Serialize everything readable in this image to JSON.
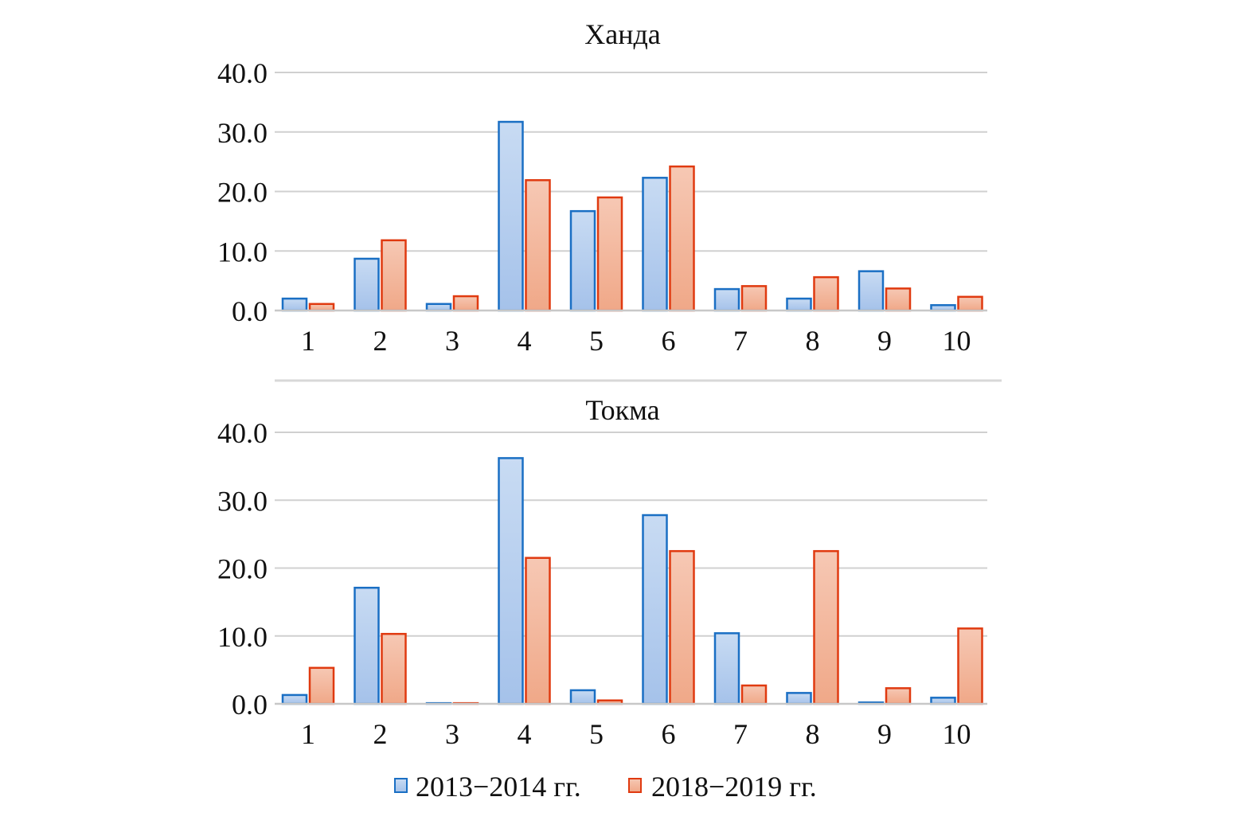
{
  "chart_data": [
    {
      "type": "bar",
      "title": "Ханда",
      "categories": [
        "1",
        "2",
        "3",
        "4",
        "5",
        "6",
        "7",
        "8",
        "9",
        "10"
      ],
      "ylim": [
        0,
        40
      ],
      "yticks": [
        "0.0",
        "10.0",
        "20.0",
        "30.0",
        "40.0"
      ],
      "grid": true,
      "series": [
        {
          "name": "2013−2014 гг.",
          "values": [
            2.0,
            8.7,
            1.1,
            31.7,
            16.7,
            22.3,
            3.6,
            2.0,
            6.6,
            0.9
          ]
        },
        {
          "name": "2018−2019 гг.",
          "values": [
            1.1,
            11.8,
            2.4,
            21.9,
            19.0,
            24.2,
            4.1,
            5.6,
            3.7,
            2.3
          ]
        }
      ]
    },
    {
      "type": "bar",
      "title": "Токма",
      "categories": [
        "1",
        "2",
        "3",
        "4",
        "5",
        "6",
        "7",
        "8",
        "9",
        "10"
      ],
      "ylim": [
        0,
        40
      ],
      "yticks": [
        "0.0",
        "10.0",
        "20.0",
        "30.0",
        "40.0"
      ],
      "grid": true,
      "series": [
        {
          "name": "2013−2014 гг.",
          "values": [
            1.3,
            17.1,
            0.1,
            36.2,
            2.0,
            27.8,
            10.4,
            1.6,
            0.2,
            0.9
          ]
        },
        {
          "name": "2018−2019 гг.",
          "values": [
            5.3,
            10.3,
            0.1,
            21.5,
            0.5,
            22.5,
            2.7,
            22.5,
            2.3,
            11.1
          ]
        }
      ]
    }
  ],
  "legend": {
    "position": "bottom",
    "items": [
      {
        "label": "2013−2014 гг.",
        "stroke": "#1a6fc4",
        "fill": "#b3cdee"
      },
      {
        "label": "2018−2019 гг.",
        "stroke": "#e03a10",
        "fill": "#f3b49a"
      }
    ]
  },
  "colors": {
    "grid": "#d0d0d0",
    "separator": "#d8d8d8"
  }
}
